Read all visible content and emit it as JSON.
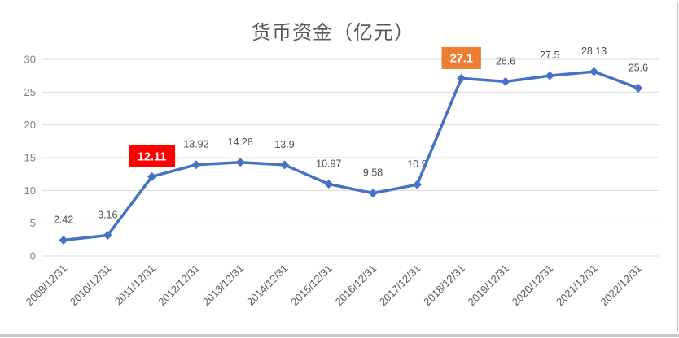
{
  "chart_data": {
    "type": "line",
    "title": "货币资金（亿元）",
    "xlabel": "",
    "ylabel": "",
    "categories": [
      "2009/12/31",
      "2010/12/31",
      "2011/12/31",
      "2012/12/31",
      "2013/12/31",
      "2014/12/31",
      "2015/12/31",
      "2016/12/31",
      "2017/12/31",
      "2018/12/31",
      "2019/12/31",
      "2020/12/31",
      "2021/12/31",
      "2022/12/31"
    ],
    "values": [
      2.42,
      3.16,
      12.11,
      13.92,
      14.28,
      13.9,
      10.97,
      9.58,
      10.9,
      27.1,
      26.6,
      27.5,
      28.13,
      25.6
    ],
    "labels": [
      "2.42",
      "3.16",
      "12.11",
      "13.92",
      "14.28",
      "13.9",
      "10.97",
      "9.58",
      "10.9",
      "27.1",
      "26.6",
      "27.5",
      "28.13",
      "25.6"
    ],
    "ylim": [
      0,
      30
    ],
    "ytick_step": 5,
    "yticks": [
      0,
      5,
      10,
      15,
      20,
      25,
      30
    ],
    "grid": true,
    "legend": "none",
    "marker": "diamond",
    "highlights": [
      {
        "index": 2,
        "bg": "#FF0000",
        "text_color": "#FFFFFF"
      },
      {
        "index": 9,
        "bg": "#ED7D31",
        "text_color": "#FFFFFF"
      }
    ],
    "style": {
      "line_color": "#4472C4",
      "gridline_color": "#D9D9D9",
      "yaxis_text_color": "#7F7F7F",
      "xaxis_text_color": "#595959",
      "data_label_color": "#4D4D4D",
      "title_color": "#595959"
    }
  }
}
